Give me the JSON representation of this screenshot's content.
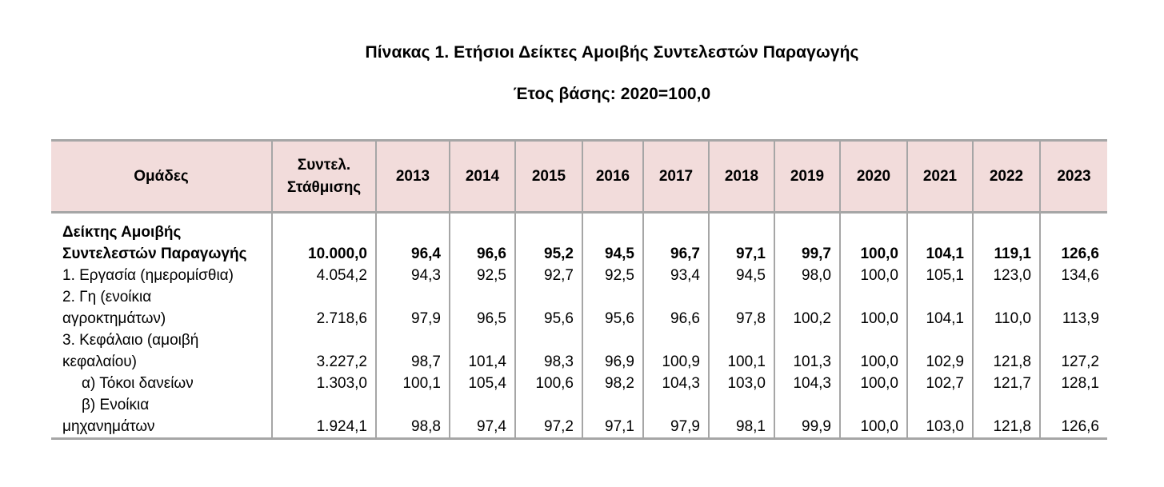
{
  "title": "Πίνακας 1. Ετήσιοι Δείκτες Αμοιβής Συντελεστών Παραγωγής",
  "subtitle": "Έτος βάσης: 2020=100,0",
  "columns": {
    "group": "Ομάδες",
    "weight_line1": "Συντελ.",
    "weight_line2": "Στάθμισης",
    "years": [
      "2013",
      "2014",
      "2015",
      "2016",
      "2017",
      "2018",
      "2019",
      "2020",
      "2021",
      "2022",
      "2023"
    ]
  },
  "rows": [
    {
      "label_line1": "Δείκτης  Αμοιβής",
      "label_line2": "Συντελεστών Παραγωγής",
      "weight": "10.000,0",
      "values": [
        "96,4",
        "96,6",
        "95,2",
        "94,5",
        "96,7",
        "97,1",
        "99,7",
        "100,0",
        "104,1",
        "119,1",
        "126,6"
      ]
    },
    {
      "label_line1": "1. Εργασία (ημερομίσθια)",
      "label_line2": "",
      "weight": "4.054,2",
      "values": [
        "94,3",
        "92,5",
        "92,7",
        "92,5",
        "93,4",
        "94,5",
        "98,0",
        "100,0",
        "105,1",
        "123,0",
        "134,6"
      ]
    },
    {
      "label_line1": "2. Γη (ενοίκια",
      "label_line2": "αγροκτημάτων)",
      "weight": "2.718,6",
      "values": [
        "97,9",
        "96,5",
        "95,6",
        "95,6",
        "96,6",
        "97,8",
        "100,2",
        "100,0",
        "104,1",
        "110,0",
        "113,9"
      ]
    },
    {
      "label_line1": "3. Κεφάλαιο (αμοιβή",
      "label_line2": "κεφαλαίου)",
      "weight": "3.227,2",
      "values": [
        "98,7",
        "101,4",
        "98,3",
        "96,9",
        "100,9",
        "100,1",
        "101,3",
        "100,0",
        "102,9",
        "121,8",
        "127,2"
      ]
    },
    {
      "label_line1": "α) Τόκοι δανείων",
      "label_line2": "",
      "weight": "1.303,0",
      "values": [
        "100,1",
        "105,4",
        "100,6",
        "98,2",
        "104,3",
        "103,0",
        "104,3",
        "100,0",
        "102,7",
        "121,7",
        "128,1"
      ]
    },
    {
      "label_line1": "β) Ενοίκια",
      "label_line2": "μηχανημάτων",
      "weight": "1.924,1",
      "values": [
        "98,8",
        "97,4",
        "97,2",
        "97,1",
        "97,9",
        "98,1",
        "99,9",
        "100,0",
        "103,0",
        "121,8",
        "126,6"
      ]
    }
  ]
}
